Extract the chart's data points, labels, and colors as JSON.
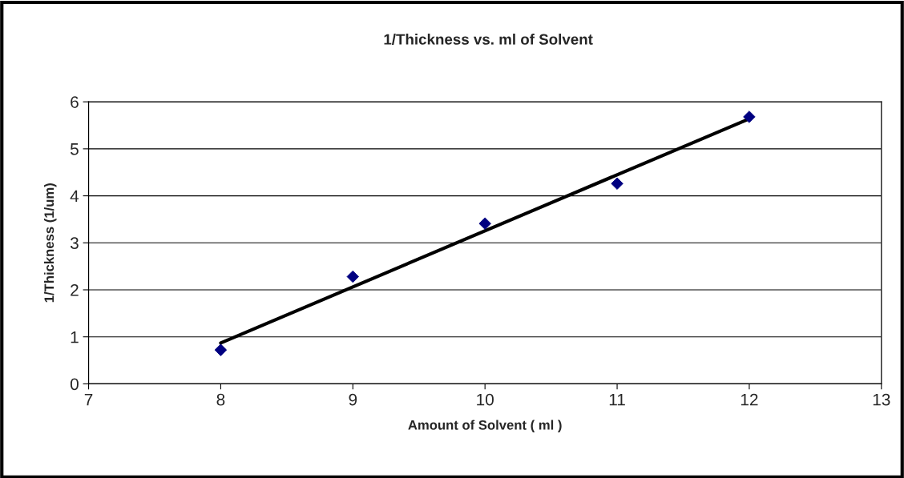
{
  "chart_data": {
    "type": "scatter",
    "title": "1/Thickness vs. ml of Solvent",
    "xlabel": "Amount of Solvent ( ml )",
    "ylabel": "1/Thickness (1/um)",
    "series": [
      {
        "color": "#000080",
        "marker": "diamond",
        "x": [
          8,
          9,
          10,
          11,
          12
        ],
        "values": [
          0.72,
          2.28,
          3.41,
          4.26,
          5.68
        ]
      },
      {
        "type": "line",
        "color": "#000000",
        "marker": "none",
        "line_style": "solid",
        "x": [
          8,
          12
        ],
        "values": [
          0.87,
          5.64
        ]
      }
    ],
    "xlim": [
      7,
      13
    ],
    "xticks": [
      7,
      8,
      9,
      10,
      11,
      12,
      13
    ],
    "ylim": [
      0,
      6
    ],
    "yticks": [
      0,
      1,
      2,
      3,
      4,
      5,
      6
    ],
    "grid": "y",
    "legend": false
  }
}
